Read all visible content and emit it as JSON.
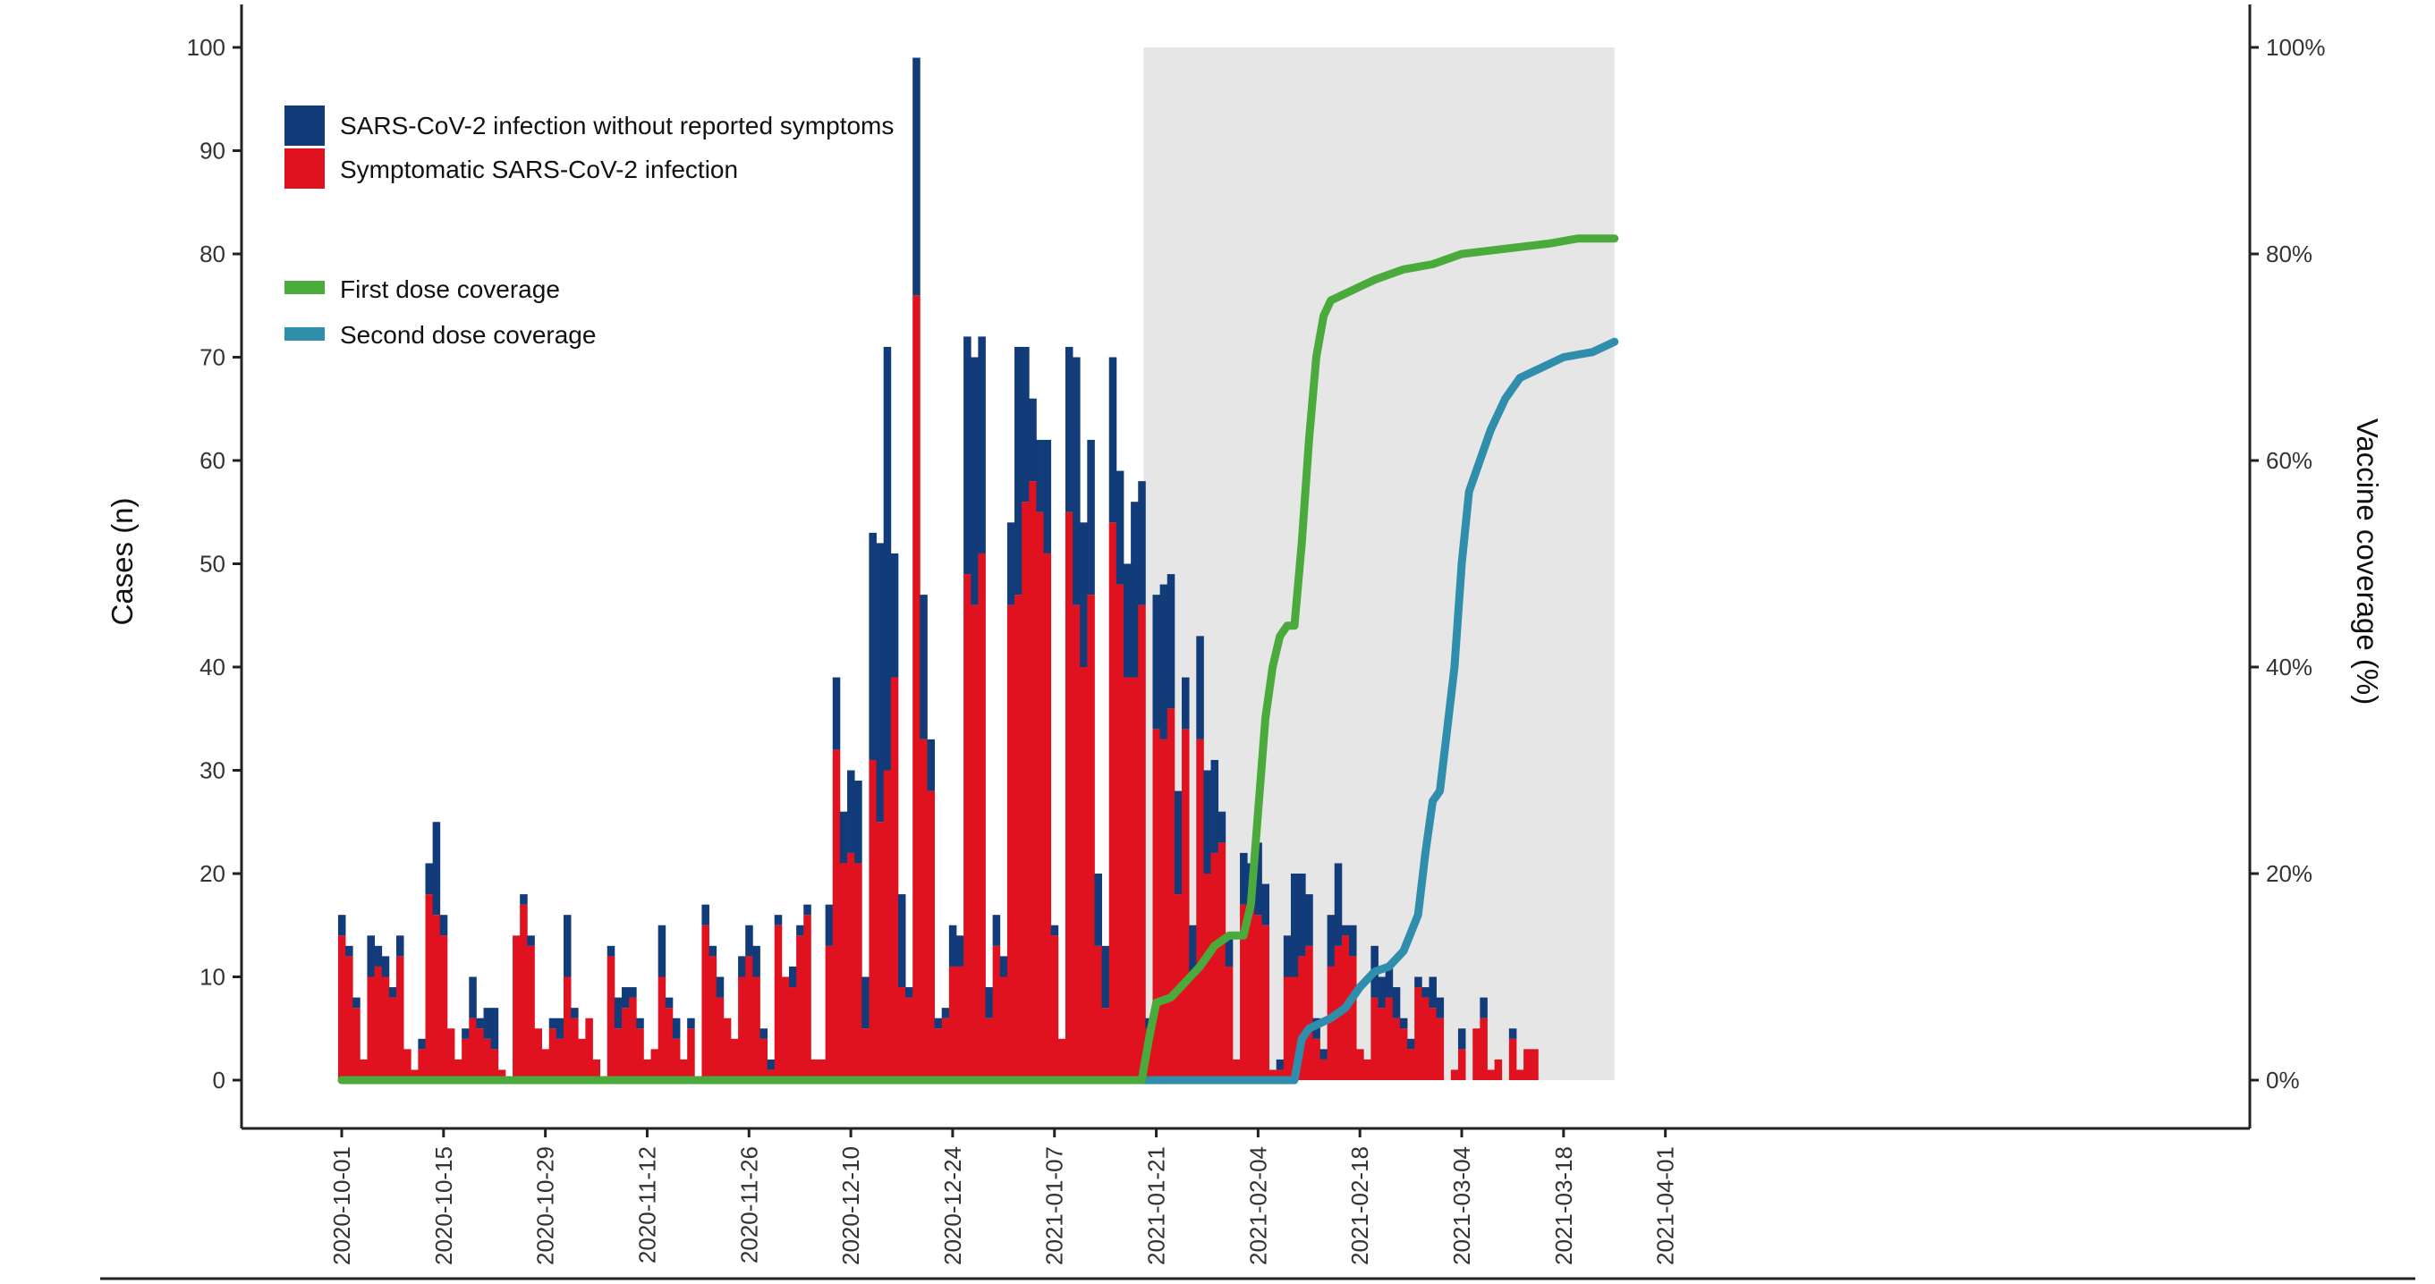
{
  "chart_data": {
    "type": "bar",
    "xlabel": "",
    "ylabel": "Cases (n)",
    "y2label": "Vaccine coverage (%)",
    "ylim": [
      0,
      100
    ],
    "y2lim": [
      0,
      100
    ],
    "start_date": "2020-10-01",
    "x_tick_labels": [
      "2020-10-01",
      "2020-10-15",
      "2020-10-29",
      "2020-11-12",
      "2020-11-26",
      "2020-12-10",
      "2020-12-24",
      "2021-01-07",
      "2021-01-21",
      "2021-02-04",
      "2021-02-18",
      "2021-03-04",
      "2021-03-18",
      "2021-04-01"
    ],
    "y_tick_labels": [
      "0",
      "10",
      "20",
      "30",
      "40",
      "50",
      "60",
      "70",
      "80",
      "90",
      "100"
    ],
    "y2_tick_labels": [
      "0%",
      "20%",
      "40%",
      "60%",
      "80%",
      "100%"
    ],
    "shaded_period": [
      "2021-01-19",
      "2021-03-25"
    ],
    "legend": {
      "bars": [
        {
          "label": "SARS-CoV-2 infection without reported symptoms",
          "color": "#123b7a"
        },
        {
          "label": "Symptomatic SARS-CoV-2 infection",
          "color": "#e0121f"
        }
      ],
      "lines": [
        {
          "label": "First dose coverage",
          "color": "#4aab3c"
        },
        {
          "label": "Second dose coverage",
          "color": "#2f8eab"
        }
      ]
    },
    "series": [
      {
        "name": "Symptomatic SARS-CoV-2 infection",
        "values": [
          14,
          12,
          7,
          2,
          10,
          11,
          10,
          8,
          12,
          3,
          1,
          3,
          18,
          16,
          14,
          5,
          2,
          4,
          6,
          5,
          4,
          3,
          1,
          0,
          14,
          17,
          13,
          5,
          3,
          5,
          4,
          10,
          6,
          4,
          6,
          2,
          0,
          12,
          5,
          7,
          8,
          5,
          2,
          3,
          10,
          7,
          4,
          2,
          5,
          0,
          15,
          12,
          8,
          6,
          4,
          10,
          12,
          10,
          4,
          1,
          15,
          10,
          9,
          14,
          16,
          2,
          2,
          13,
          32,
          21,
          22,
          21,
          5,
          31,
          25,
          30,
          39,
          9,
          8,
          76,
          33,
          28,
          5,
          6,
          11,
          11,
          49,
          46,
          51,
          6,
          13,
          10,
          46,
          47,
          56,
          58,
          55,
          51,
          14,
          4,
          55,
          46,
          40,
          47,
          13,
          7,
          54,
          48,
          39,
          39,
          46,
          5,
          34,
          33,
          36,
          18,
          34,
          10,
          33,
          20,
          22,
          23,
          11,
          2,
          17,
          17,
          16,
          15,
          1,
          1,
          10,
          10,
          12,
          13,
          4,
          2,
          11,
          13,
          14,
          12,
          3,
          2,
          8,
          7,
          8,
          6,
          5,
          3,
          9,
          8,
          7,
          6,
          0,
          1,
          3,
          0,
          5,
          6,
          1,
          2,
          0,
          4,
          1,
          3,
          3
        ],
        "color": "#e0121f"
      },
      {
        "name": "SARS-CoV-2 infection without reported symptoms",
        "values": [
          2,
          1,
          1,
          0,
          4,
          2,
          2,
          1,
          2,
          0,
          0,
          1,
          3,
          9,
          2,
          0,
          0,
          1,
          4,
          1,
          3,
          4,
          0,
          0,
          0,
          1,
          1,
          0,
          0,
          1,
          2,
          6,
          1,
          0,
          0,
          0,
          0,
          1,
          3,
          2,
          1,
          1,
          0,
          0,
          5,
          1,
          2,
          0,
          1,
          0,
          2,
          1,
          2,
          0,
          0,
          2,
          3,
          3,
          1,
          1,
          1,
          0,
          2,
          1,
          1,
          0,
          0,
          4,
          7,
          5,
          8,
          8,
          5,
          22,
          27,
          41,
          12,
          9,
          1,
          23,
          14,
          5,
          1,
          1,
          4,
          3,
          23,
          24,
          21,
          3,
          3,
          2,
          8,
          24,
          15,
          8,
          7,
          11,
          1,
          0,
          16,
          24,
          14,
          15,
          7,
          6,
          16,
          11,
          11,
          17,
          12,
          1,
          13,
          15,
          13,
          10,
          5,
          5,
          10,
          10,
          9,
          3,
          3,
          0,
          5,
          4,
          7,
          4,
          0,
          1,
          4,
          10,
          8,
          5,
          2,
          1,
          5,
          8,
          1,
          3,
          0,
          0,
          5,
          3,
          3,
          3,
          1,
          1,
          1,
          1,
          3,
          2,
          0,
          0,
          2,
          0,
          0,
          2,
          0,
          0,
          0,
          1,
          0,
          0,
          0
        ],
        "color": "#123b7a"
      },
      {
        "name": "First dose coverage",
        "points": [
          [
            "2020-10-01",
            0
          ],
          [
            "2021-01-19",
            0
          ],
          [
            "2021-01-20",
            4
          ],
          [
            "2021-01-21",
            7.5
          ],
          [
            "2021-01-23",
            8
          ],
          [
            "2021-01-25",
            9.5
          ],
          [
            "2021-01-27",
            11
          ],
          [
            "2021-01-29",
            13
          ],
          [
            "2021-01-31",
            14
          ],
          [
            "2021-02-02",
            14
          ],
          [
            "2021-02-03",
            17
          ],
          [
            "2021-02-04",
            26
          ],
          [
            "2021-02-05",
            35
          ],
          [
            "2021-02-06",
            40
          ],
          [
            "2021-02-07",
            43
          ],
          [
            "2021-02-08",
            44
          ],
          [
            "2021-02-09",
            44
          ],
          [
            "2021-02-10",
            52
          ],
          [
            "2021-02-11",
            62
          ],
          [
            "2021-02-12",
            70
          ],
          [
            "2021-02-13",
            74
          ],
          [
            "2021-02-14",
            75.5
          ],
          [
            "2021-02-17",
            76.5
          ],
          [
            "2021-02-20",
            77.5
          ],
          [
            "2021-02-24",
            78.5
          ],
          [
            "2021-02-28",
            79
          ],
          [
            "2021-03-04",
            80
          ],
          [
            "2021-03-10",
            80.5
          ],
          [
            "2021-03-16",
            81
          ],
          [
            "2021-03-20",
            81.5
          ],
          [
            "2021-03-25",
            81.5
          ]
        ],
        "color": "#4aab3c"
      },
      {
        "name": "Second dose coverage",
        "points": [
          [
            "2020-10-01",
            0
          ],
          [
            "2021-02-09",
            0
          ],
          [
            "2021-02-10",
            4
          ],
          [
            "2021-02-11",
            5
          ],
          [
            "2021-02-14",
            6
          ],
          [
            "2021-02-16",
            7
          ],
          [
            "2021-02-18",
            9
          ],
          [
            "2021-02-20",
            10.5
          ],
          [
            "2021-02-22",
            11
          ],
          [
            "2021-02-24",
            12.5
          ],
          [
            "2021-02-26",
            16
          ],
          [
            "2021-02-27",
            22
          ],
          [
            "2021-02-28",
            27
          ],
          [
            "2021-03-01",
            28
          ],
          [
            "2021-03-02",
            34
          ],
          [
            "2021-03-03",
            40
          ],
          [
            "2021-03-04",
            50
          ],
          [
            "2021-03-05",
            57
          ],
          [
            "2021-03-06",
            59
          ],
          [
            "2021-03-08",
            63
          ],
          [
            "2021-03-10",
            66
          ],
          [
            "2021-03-12",
            68
          ],
          [
            "2021-03-15",
            69
          ],
          [
            "2021-03-18",
            70
          ],
          [
            "2021-03-22",
            70.5
          ],
          [
            "2021-03-25",
            71.5
          ]
        ],
        "color": "#2f8eab"
      }
    ],
    "grid": false,
    "legend_position": "top-left"
  }
}
